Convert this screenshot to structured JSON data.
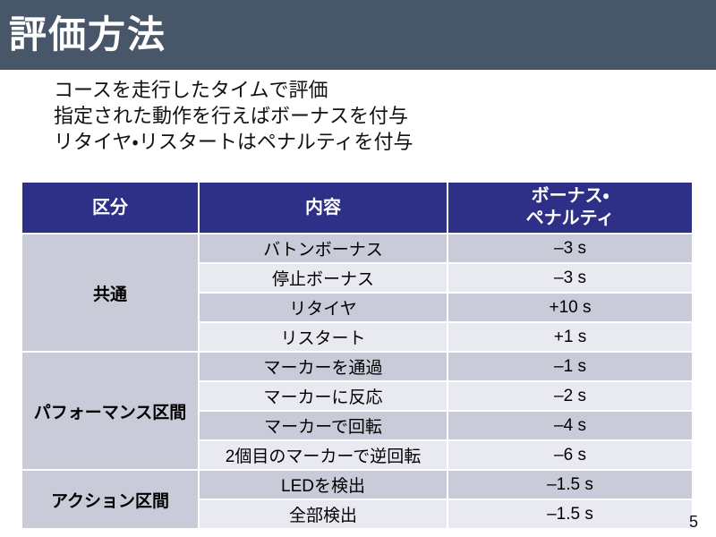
{
  "slide": {
    "title": "評価方法",
    "page_number": "5",
    "intro_lines": {
      "line1": "コースを走行したタイムで評価",
      "line2": "指定された動作を行えばボーナスを付与",
      "line3": "リタイヤ・リスタートはペナルティを付与"
    }
  },
  "table": {
    "headers": {
      "category": "区分",
      "content": "内容",
      "bonus_line1": "ボーナス・",
      "bonus_line2": "ペナルティ"
    },
    "groups": [
      {
        "category": "共通",
        "rows": [
          {
            "desc": "バトンボーナス",
            "value": "–3 s"
          },
          {
            "desc": "停止ボーナス",
            "value": "–3 s"
          },
          {
            "desc": "リタイヤ",
            "value": "+10 s"
          },
          {
            "desc": "リスタート",
            "value": "+1 s"
          }
        ]
      },
      {
        "category": "パフォーマンス区間",
        "rows": [
          {
            "desc": "マーカーを通過",
            "value": "–1 s"
          },
          {
            "desc": "マーカーに反応",
            "value": "–2 s"
          },
          {
            "desc": "マーカーで回転",
            "value": "–4 s"
          },
          {
            "desc": "2個目のマーカーで逆回転",
            "value": "–6 s"
          }
        ]
      },
      {
        "category": "アクション区間",
        "rows": [
          {
            "desc": "LEDを検出",
            "value": "–1.5 s"
          },
          {
            "desc": "全部検出",
            "value": "–1.5 s"
          }
        ]
      }
    ]
  },
  "colors": {
    "title_bar": "#475669",
    "table_header": "#2e3087",
    "row_dark": "#c9cbd8",
    "row_light": "#e9eaf1",
    "text": "#111111",
    "title_text": "#ffffff"
  }
}
